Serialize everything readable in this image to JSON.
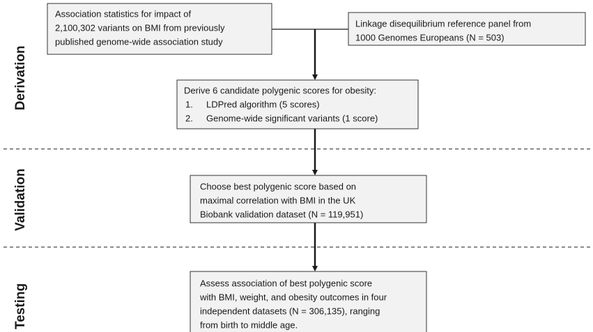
{
  "sections": [
    {
      "label": "Derivation"
    },
    {
      "label": "Validation"
    },
    {
      "label": "Testing"
    }
  ],
  "boxes": [
    {
      "lines": [
        "Association statistics for impact of",
        "2,100,302 variants on BMI from previously",
        "published genome-wide association study"
      ]
    },
    {
      "lines": [
        "Linkage disequilibrium reference panel from",
        "1000 Genomes Europeans (N = 503)"
      ]
    },
    {
      "lines": [
        "Derive 6 candidate polygenic scores for obesity:"
      ],
      "items": [
        {
          "number": "1.",
          "text": "LDPred algorithm (5 scores)"
        },
        {
          "number": "2.",
          "text": "Genome-wide significant variants (1 score)"
        }
      ]
    },
    {
      "lines": [
        "Choose best polygenic score based on",
        "maximal correlation with BMI in the UK",
        "Biobank validation dataset (N = 119,951)"
      ]
    },
    {
      "lines": [
        "Assess association of best polygenic score",
        "with BMI, weight, and obesity outcomes in four",
        "independent datasets (N = 306,135), ranging",
        "from birth to middle age."
      ]
    }
  ]
}
